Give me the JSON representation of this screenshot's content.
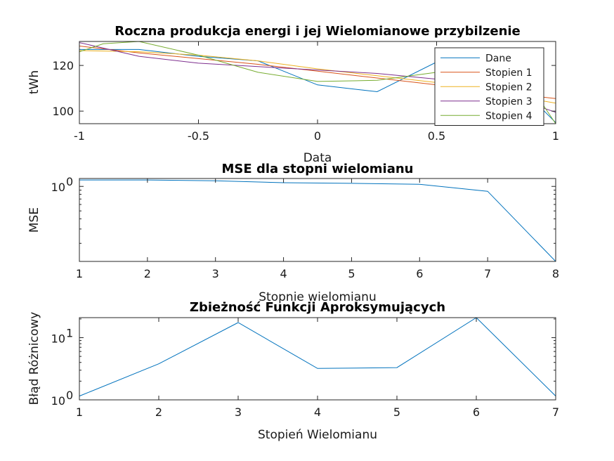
{
  "colors": {
    "blue": "#0072BD",
    "orange": "#D95319",
    "yellow": "#EDB120",
    "purple": "#7E2F8E",
    "green": "#77AC30",
    "axis": "#262626"
  },
  "chart_data": [
    {
      "type": "line",
      "title": "Roczna produkcja energi i jej Wielomianowe przybilzenie",
      "xlabel": "Data",
      "ylabel": "tWh",
      "xlim": [
        -1,
        1
      ],
      "ylim": [
        94.5,
        130.5
      ],
      "xticks": [
        -1,
        -0.5,
        0,
        0.5,
        1
      ],
      "xtick_labels": [
        "-1",
        "-0.5",
        "0",
        "0.5",
        "1"
      ],
      "yticks": [
        100,
        120
      ],
      "ytick_labels": [
        "100",
        "120"
      ],
      "legend_position": "top-right",
      "series": [
        {
          "name": "Dane",
          "color": "blue",
          "x": [
            -1,
            -0.75,
            -0.5,
            -0.25,
            0,
            0.25,
            0.5,
            0.75,
            1
          ],
          "y": [
            127,
            127,
            124,
            122,
            111.5,
            108.5,
            121.5,
            121,
            95
          ]
        },
        {
          "name": "Stopien 1",
          "color": "orange",
          "x": [
            -1,
            -0.75,
            -0.5,
            -0.25,
            0,
            0.25,
            0.5,
            0.75,
            1
          ],
          "y": [
            128.5,
            125.5,
            123,
            120.5,
            117.5,
            114.5,
            111.5,
            108.5,
            105.5
          ]
        },
        {
          "name": "Stopien 2",
          "color": "yellow",
          "x": [
            -1,
            -0.75,
            -0.5,
            -0.25,
            0,
            0.25,
            0.5,
            0.75,
            1
          ],
          "y": [
            126.5,
            126,
            124.5,
            122,
            118.5,
            115.5,
            112.5,
            108,
            103.5
          ]
        },
        {
          "name": "Stopien 3",
          "color": "purple",
          "x": [
            -1,
            -0.75,
            -0.5,
            -0.25,
            0,
            0.25,
            0.5,
            0.75,
            1
          ],
          "y": [
            130,
            124,
            121,
            119.5,
            118,
            116.5,
            114,
            108.5,
            99.5
          ]
        },
        {
          "name": "Stopien 4",
          "color": "green",
          "x": [
            -1,
            -0.9,
            -0.75,
            -0.5,
            -0.25,
            0,
            0.25,
            0.5,
            0.75,
            0.9,
            1
          ],
          "y": [
            126,
            129.5,
            130.5,
            124.5,
            117,
            113,
            113.5,
            117,
            118.5,
            110,
            94.5
          ]
        }
      ]
    },
    {
      "type": "line",
      "title": "MSE dla stopni wielomianu",
      "xlabel": "Stopnie wielomianu",
      "ylabel": "MSE",
      "yscale": "log",
      "xlim": [
        1,
        8
      ],
      "ylim": [
        0.12,
        1.25
      ],
      "xticks": [
        1,
        2,
        3,
        4,
        5,
        6,
        7,
        8
      ],
      "xtick_labels": [
        "1",
        "2",
        "3",
        "4",
        "5",
        "6",
        "7",
        "8"
      ],
      "yticks": [
        1
      ],
      "ytick_labels": [
        "10",
        "0"
      ],
      "series": [
        {
          "name": "",
          "color": "blue",
          "x": [
            1,
            2,
            3,
            4,
            5,
            6,
            7,
            8
          ],
          "y": [
            1.2,
            1.2,
            1.17,
            1.11,
            1.09,
            1.06,
            0.87,
            0.12
          ]
        }
      ]
    },
    {
      "type": "line",
      "title": "Zbieżność Funkcji Aproksymujących",
      "xlabel": "Stopień Wielomianu",
      "ylabel": "Błąd Różnicowy",
      "yscale": "log",
      "xlim": [
        1,
        7
      ],
      "ylim": [
        1,
        21
      ],
      "xticks": [
        1,
        2,
        3,
        4,
        5,
        6,
        7
      ],
      "xtick_labels": [
        "1",
        "2",
        "3",
        "4",
        "5",
        "6",
        "7"
      ],
      "yticks": [
        1,
        10
      ],
      "ytick_labels": [
        [
          "10",
          "0"
        ],
        [
          "10",
          "1"
        ]
      ],
      "series": [
        {
          "name": "",
          "color": "blue",
          "x": [
            1,
            2,
            3,
            4,
            5,
            6,
            7
          ],
          "y": [
            1.15,
            3.8,
            17.5,
            3.2,
            3.3,
            21,
            1.15
          ]
        }
      ]
    }
  ]
}
